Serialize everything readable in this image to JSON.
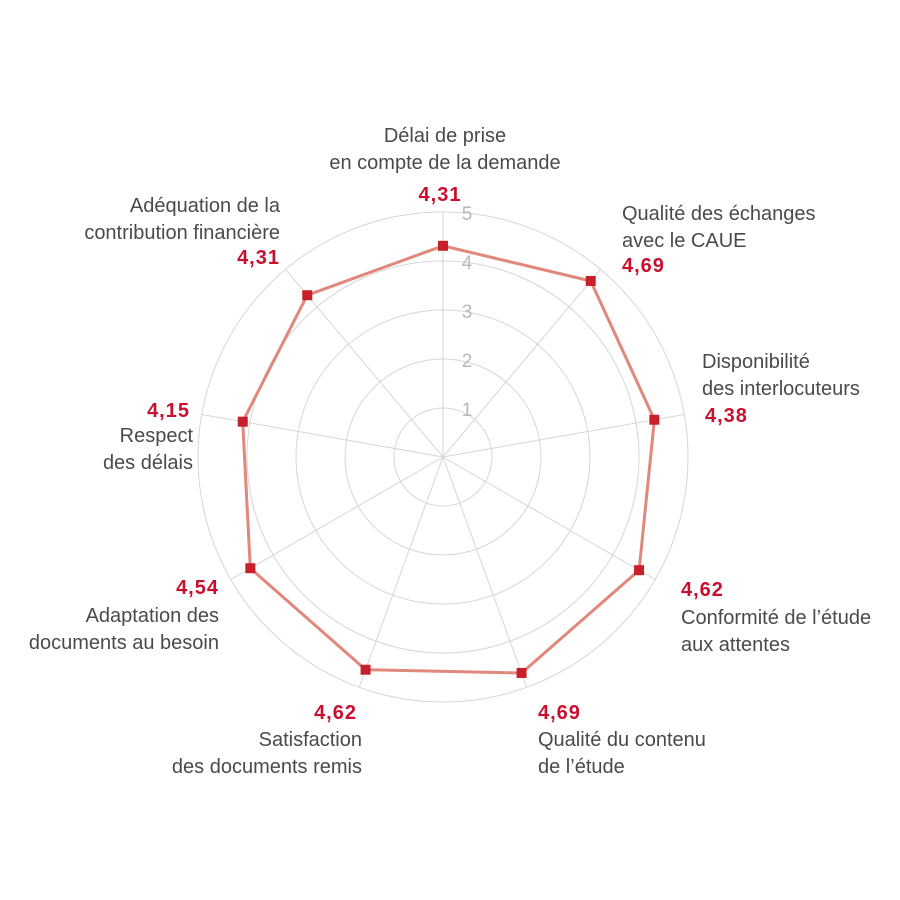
{
  "chart_data": {
    "type": "radar",
    "title": "",
    "rlim": [
      0,
      5
    ],
    "ticks": [
      "1",
      "2",
      "3",
      "4",
      "5"
    ],
    "grid": true,
    "line_color": "#e0887c",
    "marker_color": "#c8202a",
    "value_color": "#c8102e",
    "axes": [
      {
        "label_lines": [
          "Délai de prise",
          "en compte de la demande"
        ],
        "value": 4.31,
        "value_label": "4,31"
      },
      {
        "label_lines": [
          "Qualité des échanges",
          "avec le CAUE"
        ],
        "value": 4.69,
        "value_label": "4,69"
      },
      {
        "label_lines": [
          "Disponibilité",
          "des interlocuteurs"
        ],
        "value": 4.38,
        "value_label": "4,38"
      },
      {
        "label_lines": [
          "Conformité de l’étude",
          "aux attentes"
        ],
        "value": 4.62,
        "value_label": "4,62"
      },
      {
        "label_lines": [
          "Qualité du contenu",
          "de l’étude"
        ],
        "value": 4.69,
        "value_label": "4,69"
      },
      {
        "label_lines": [
          "Satisfaction",
          "des documents remis"
        ],
        "value": 4.62,
        "value_label": "4,62"
      },
      {
        "label_lines": [
          "Adaptation des",
          "documents au besoin"
        ],
        "value": 4.54,
        "value_label": "4,54"
      },
      {
        "label_lines": [
          "Respect",
          "des délais"
        ],
        "value": 4.15,
        "value_label": "4,15"
      },
      {
        "label_lines": [
          "Adéquation de la",
          "contribution financière"
        ],
        "value": 4.31,
        "value_label": "4,31"
      }
    ]
  }
}
